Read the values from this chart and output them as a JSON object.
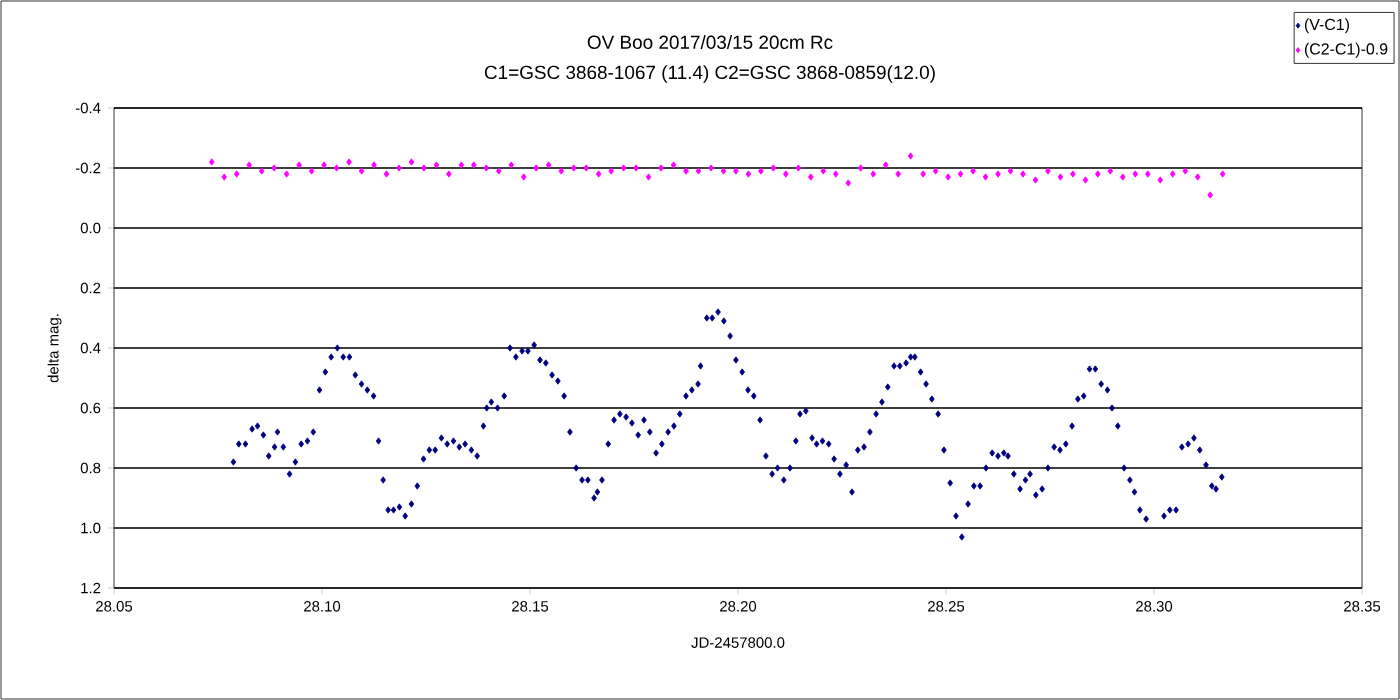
{
  "chart_data": {
    "type": "scatter",
    "title": "OV Boo  2017/03/15  20cm Rc",
    "subtitle": "C1=GSC 3868-1067 (11.4)    C2=GSC 3868-0859(12.0)",
    "xlabel": "JD-2457800.0",
    "ylabel": "delta mag.",
    "xlim": [
      28.05,
      28.35
    ],
    "xticks": [
      28.05,
      {
        "value": 28.1,
        "label": "28.10"
      },
      28.15,
      {
        "value": 28.2,
        "label": "28.20"
      },
      28.25,
      {
        "value": 28.3,
        "label": "28.30"
      },
      28.35
    ],
    "ylim": [
      1.2,
      -0.4
    ],
    "yticks": [
      -0.4,
      -0.2,
      {
        "value": 0,
        "label": "0.0"
      },
      0.2,
      0.4,
      0.6,
      0.8,
      {
        "value": 1,
        "label": "1.0"
      },
      1.2
    ],
    "grid": "y",
    "legend": "top right",
    "marker": "diamond",
    "series": [
      {
        "name": "(V-C1)",
        "color": "#000080",
        "x": [
          28.0787,
          28.08,
          28.0816,
          28.0832,
          28.0845,
          28.0859,
          28.0872,
          28.0886,
          28.0893,
          28.0907,
          28.0922,
          28.0936,
          28.095,
          28.0965,
          28.0979,
          28.0994,
          28.1008,
          28.1022,
          28.1037,
          28.1051,
          28.1066,
          28.108,
          28.1095,
          28.1109,
          28.1124,
          28.1136,
          28.1147,
          28.1159,
          28.1172,
          28.1186,
          28.12,
          28.1215,
          28.1229,
          28.1244,
          28.1258,
          28.1272,
          28.1287,
          28.1301,
          28.1316,
          28.133,
          28.1344,
          28.1359,
          28.1373,
          28.1388,
          28.1396,
          28.1407,
          28.1422,
          28.1438,
          28.1452,
          28.1466,
          28.1481,
          28.1495,
          28.151,
          28.1524,
          28.1538,
          28.1553,
          28.1567,
          28.1582,
          28.1596,
          28.1611,
          28.1625,
          28.1639,
          28.1654,
          28.1662,
          28.1673,
          28.1688,
          28.1702,
          28.1716,
          28.1731,
          28.1745,
          28.176,
          28.1774,
          28.1788,
          28.1803,
          28.1817,
          28.1832,
          28.1846,
          28.186,
          28.1875,
          28.1889,
          28.1904,
          28.191,
          28.1925,
          28.1938,
          28.1952,
          28.1966,
          28.1981,
          28.1995,
          28.201,
          28.2024,
          28.2038,
          28.2053,
          28.2067,
          28.2082,
          28.2095,
          28.211,
          28.2125,
          28.2139,
          28.2149,
          28.2163,
          28.2178,
          28.2189,
          28.2203,
          28.2218,
          28.2231,
          28.2245,
          28.226,
          28.2274,
          28.2288,
          28.2303,
          28.2317,
          28.2332,
          28.2346,
          28.236,
          28.2375,
          28.2389,
          28.2404,
          28.2415,
          28.2425,
          28.2439,
          28.2452,
          28.2466,
          28.2481,
          28.2495,
          28.251,
          28.2524,
          28.2538,
          28.2553,
          28.2567,
          28.2582,
          28.2596,
          28.2611,
          28.2625,
          28.2639,
          28.2649,
          28.2663,
          28.2678,
          28.2691,
          28.2702,
          28.2716,
          28.2731,
          28.2745,
          28.276,
          28.2774,
          28.2788,
          28.2803,
          28.2817,
          28.2831,
          28.2845,
          28.2859,
          28.2873,
          28.2888,
          28.2899,
          28.2913,
          28.2928,
          28.2942,
          28.2953,
          28.2966,
          28.2981,
          28.3024,
          28.3038,
          28.3053,
          28.3067,
          28.3082,
          28.3096,
          28.311,
          28.3125,
          28.3139,
          28.3149,
          28.3163
        ],
        "values": [
          0.78,
          0.72,
          0.72,
          0.67,
          0.66,
          0.69,
          0.76,
          0.73,
          0.68,
          0.73,
          0.82,
          0.78,
          0.72,
          0.71,
          0.68,
          0.54,
          0.48,
          0.43,
          0.4,
          0.43,
          0.43,
          0.49,
          0.52,
          0.54,
          0.56,
          0.71,
          0.84,
          0.94,
          0.94,
          0.93,
          0.96,
          0.92,
          0.86,
          0.77,
          0.74,
          0.74,
          0.7,
          0.72,
          0.71,
          0.73,
          0.72,
          0.74,
          0.76,
          0.66,
          0.6,
          0.58,
          0.6,
          0.56,
          0.4,
          0.43,
          0.41,
          0.41,
          0.39,
          0.44,
          0.45,
          0.49,
          0.51,
          0.56,
          0.68,
          0.8,
          0.84,
          0.84,
          0.9,
          0.88,
          0.84,
          0.72,
          0.64,
          0.62,
          0.63,
          0.65,
          0.69,
          0.64,
          0.68,
          0.75,
          0.72,
          0.68,
          0.66,
          0.62,
          0.56,
          0.54,
          0.52,
          0.46,
          0.3,
          0.3,
          0.28,
          0.31,
          0.36,
          0.44,
          0.48,
          0.54,
          0.56,
          0.64,
          0.76,
          0.82,
          0.8,
          0.84,
          0.8,
          0.71,
          0.62,
          0.61,
          0.7,
          0.72,
          0.71,
          0.72,
          0.77,
          0.82,
          0.79,
          0.88,
          0.74,
          0.73,
          0.68,
          0.62,
          0.58,
          0.53,
          0.46,
          0.46,
          0.45,
          0.43,
          0.43,
          0.48,
          0.52,
          0.57,
          0.62,
          0.74,
          0.85,
          0.96,
          1.03,
          0.92,
          0.86,
          0.86,
          0.8,
          0.75,
          0.76,
          0.75,
          0.76,
          0.82,
          0.87,
          0.84,
          0.82,
          0.89,
          0.87,
          0.8,
          0.73,
          0.74,
          0.72,
          0.66,
          0.57,
          0.56,
          0.47,
          0.47,
          0.52,
          0.54,
          0.6,
          0.66,
          0.8,
          0.84,
          0.88,
          0.94,
          0.97,
          0.96,
          0.94,
          0.94,
          0.73,
          0.72,
          0.7,
          0.74,
          0.79,
          0.86,
          0.87,
          0.83
        ]
      },
      {
        "name": "(C2-C1)-0.9",
        "color": "#ff00ff",
        "x": [
          28.0735,
          28.0765,
          28.0795,
          28.0825,
          28.0855,
          28.0885,
          28.0915,
          28.0945,
          28.0975,
          28.1005,
          28.1035,
          28.1065,
          28.1095,
          28.1125,
          28.1155,
          28.1185,
          28.1215,
          28.1245,
          28.1275,
          28.1305,
          28.1335,
          28.1365,
          28.1395,
          28.1425,
          28.1455,
          28.1485,
          28.1515,
          28.1545,
          28.1575,
          28.1605,
          28.1635,
          28.1665,
          28.1695,
          28.1725,
          28.1755,
          28.1785,
          28.1815,
          28.1845,
          28.1875,
          28.1905,
          28.1935,
          28.1965,
          28.1995,
          28.2025,
          28.2055,
          28.2085,
          28.2115,
          28.2145,
          28.2175,
          28.2205,
          28.2235,
          28.2265,
          28.2295,
          28.2325,
          28.2355,
          28.2385,
          28.2415,
          28.2445,
          28.2475,
          28.2505,
          28.2535,
          28.2565,
          28.2595,
          28.2625,
          28.2655,
          28.2685,
          28.2715,
          28.2745,
          28.2775,
          28.2805,
          28.2835,
          28.2865,
          28.2895,
          28.2925,
          28.2955,
          28.2985,
          28.3015,
          28.3045,
          28.3075,
          28.3105,
          28.3135,
          28.3165
        ],
        "values": [
          -0.22,
          -0.17,
          -0.18,
          -0.21,
          -0.19,
          -0.2,
          -0.18,
          -0.21,
          -0.19,
          -0.21,
          -0.2,
          -0.22,
          -0.19,
          -0.21,
          -0.18,
          -0.2,
          -0.22,
          -0.2,
          -0.21,
          -0.18,
          -0.21,
          -0.21,
          -0.2,
          -0.19,
          -0.21,
          -0.17,
          -0.2,
          -0.21,
          -0.19,
          -0.2,
          -0.2,
          -0.18,
          -0.19,
          -0.2,
          -0.2,
          -0.17,
          -0.2,
          -0.21,
          -0.19,
          -0.19,
          -0.2,
          -0.19,
          -0.19,
          -0.18,
          -0.19,
          -0.2,
          -0.18,
          -0.2,
          -0.17,
          -0.19,
          -0.18,
          -0.15,
          -0.2,
          -0.18,
          -0.21,
          -0.18,
          -0.24,
          -0.18,
          -0.19,
          -0.17,
          -0.18,
          -0.19,
          -0.17,
          -0.18,
          -0.19,
          -0.18,
          -0.16,
          -0.19,
          -0.17,
          -0.18,
          -0.16,
          -0.18,
          -0.19,
          -0.17,
          -0.18,
          -0.18,
          -0.16,
          -0.18,
          -0.19,
          -0.17,
          -0.11,
          -0.18
        ]
      }
    ]
  }
}
